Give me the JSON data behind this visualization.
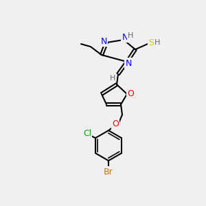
{
  "bg_color": "#f0f0f0",
  "bond_color": "#000000",
  "atom_colors": {
    "N": "#0000ff",
    "O": "#ff0000",
    "S": "#cccc00",
    "Cl": "#00aa00",
    "Br": "#cc7700",
    "H": "#666666",
    "C": "#000000"
  },
  "font_size": 9,
  "label_font_size": 9
}
